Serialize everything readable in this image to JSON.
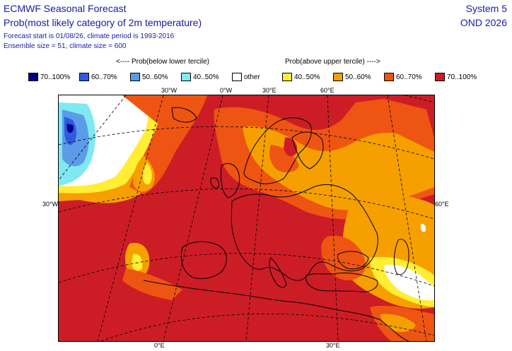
{
  "header": {
    "title": "ECMWF Seasonal Forecast",
    "subtitle": "Prob(most likely category of 2m temperature)",
    "forecast_info": "Forecast start is 01/08/26, climate period is 1993-2016",
    "ensemble_info": "Ensemble size = 51, climate size = 600",
    "system": "System 5",
    "season": "OND 2026"
  },
  "legend": {
    "below_label": "<---- Prob(below lower tercile)",
    "above_label": "Prob(above upper tercile) ---->",
    "items": [
      {
        "label": "70..100%",
        "color": "#00008b"
      },
      {
        "label": "60..70%",
        "color": "#2f5be0"
      },
      {
        "label": "50..60%",
        "color": "#5b9be8"
      },
      {
        "label": "40..50%",
        "color": "#7fe9f2"
      },
      {
        "label": "other",
        "color": "#ffffff"
      },
      {
        "label": "40..50%",
        "color": "#ffee33"
      },
      {
        "label": "50..60%",
        "color": "#f5a000"
      },
      {
        "label": "60..70%",
        "color": "#ee5512"
      },
      {
        "label": "70..100%",
        "color": "#cc1d26"
      }
    ]
  },
  "map": {
    "grid_labels": {
      "top_30w": "30°W",
      "top_0": "0°W",
      "top_30e": "30°E",
      "top_60e": "60°E",
      "left_30w": "30°W",
      "right_60e": "60°E",
      "bottom_0": "0°E",
      "bottom_30e": "30°E"
    },
    "colors": {
      "prob_70_100_above": "#cc1d26",
      "prob_60_70_above": "#ee5512",
      "prob_50_60_above": "#f5a000",
      "prob_40_50_above": "#ffee33",
      "other": "#ffffff",
      "prob_40_50_below": "#7fe9f2",
      "prob_50_60_below": "#5b9be8",
      "prob_60_70_below": "#2f5be0",
      "prob_70_100_below": "#00008b"
    }
  }
}
